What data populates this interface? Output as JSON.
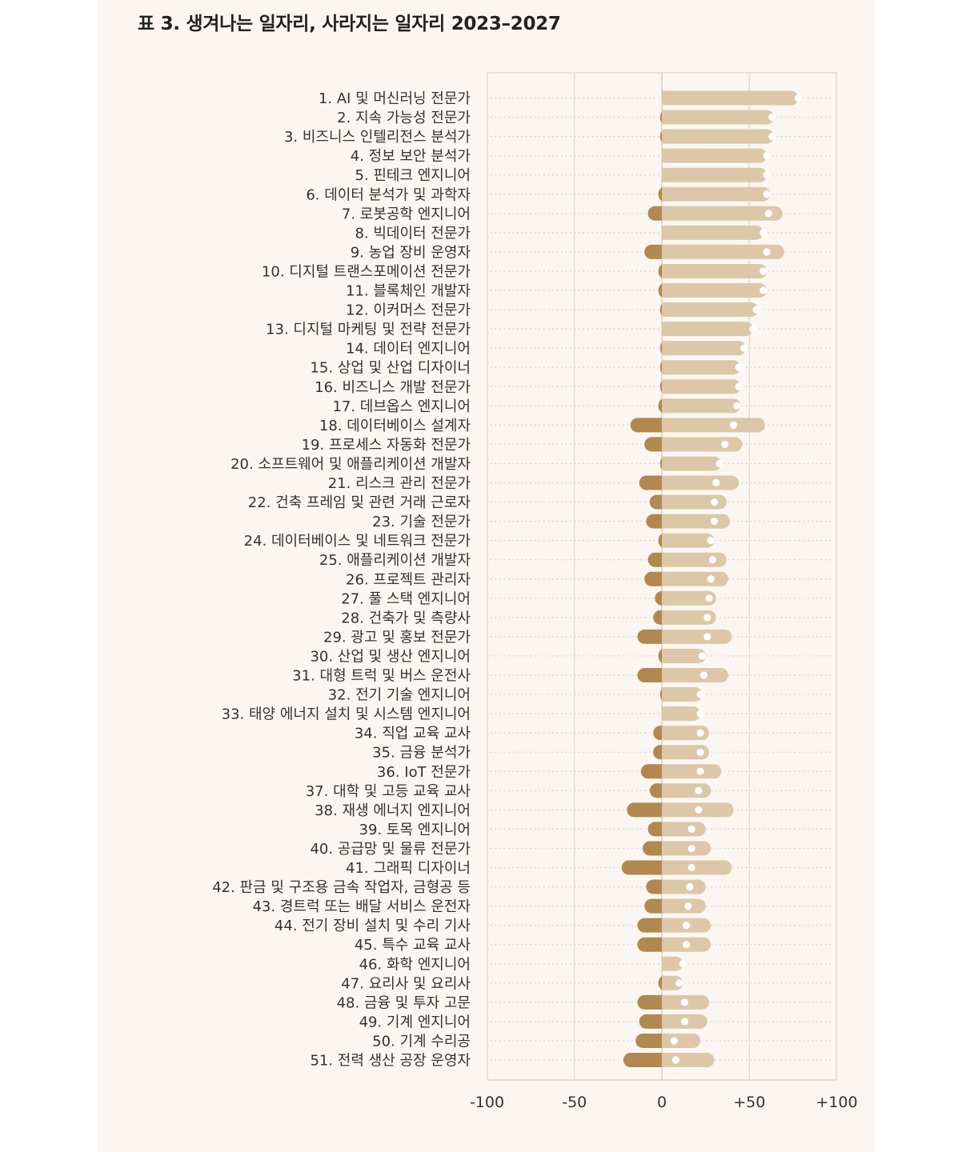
{
  "chart_data": {
    "type": "bar",
    "title": "표 3. 생겨나는 일자리, 사라지는 일자리 2023–2027",
    "xlabel": "",
    "ylabel": "",
    "xlim": [
      -100,
      100
    ],
    "x_ticks": [
      -100,
      -50,
      0,
      50,
      100
    ],
    "x_tick_labels": [
      "-100",
      "-50",
      "0",
      "+50",
      "+100"
    ],
    "colors": {
      "decline": "#b08850",
      "growth": "#dcc7a9",
      "net_marker": "#ffffff",
      "grid": "#e6d9c8"
    },
    "series": [
      {
        "name": "decline",
        "values": [
          0,
          -1,
          -1,
          0,
          0,
          -2,
          -8,
          0,
          -10,
          -2,
          -2,
          -1,
          0,
          -1,
          -1,
          -1,
          -2,
          -18,
          -10,
          -1,
          -13,
          -7,
          -9,
          -2,
          -8,
          -10,
          -4,
          -5,
          -14,
          -2,
          -14,
          -1,
          0,
          -5,
          -5,
          -12,
          -7,
          -20,
          -8,
          -11,
          -23,
          -9,
          -10,
          -14,
          -14,
          0,
          -2,
          -14,
          -13,
          -15,
          -22
        ]
      },
      {
        "name": "growth",
        "values": [
          78,
          64,
          64,
          60,
          60,
          62,
          69,
          58,
          70,
          60,
          60,
          55,
          52,
          48,
          45,
          45,
          45,
          59,
          46,
          34,
          44,
          37,
          39,
          30,
          37,
          38,
          31,
          31,
          40,
          25,
          38,
          23,
          22,
          27,
          27,
          34,
          28,
          41,
          25,
          28,
          40,
          25,
          25,
          28,
          28,
          12,
          12,
          27,
          26,
          22,
          30
        ]
      },
      {
        "name": "net",
        "values": [
          78,
          63,
          63,
          60,
          60,
          60,
          61,
          58,
          60,
          58,
          58,
          54,
          52,
          47,
          44,
          44,
          43,
          41,
          36,
          33,
          31,
          30,
          30,
          28,
          29,
          28,
          27,
          26,
          26,
          23,
          24,
          22,
          22,
          22,
          22,
          22,
          21,
          21,
          17,
          17,
          17,
          16,
          15,
          14,
          14,
          12,
          10,
          13,
          13,
          7,
          8
        ]
      }
    ],
    "categories": [
      "1. AI 및 머신러닝 전문가",
      "2. 지속 가능성 전문가",
      "3. 비즈니스 인텔리전스 분석가",
      "4. 정보 보안 분석가",
      "5. 핀테크 엔지니어",
      "6. 데이터 분석가 및 과학자",
      "7. 로봇공학 엔지니어",
      "8. 빅데이터 전문가",
      "9. 농업 장비 운영자",
      "10. 디지털 트랜스포메이션 전문가",
      "11. 블록체인 개발자",
      "12. 이커머스 전문가",
      "13. 디지털 마케팅 및 전략 전문가",
      "14. 데이터 엔지니어",
      "15. 상업 및 산업 디자이너",
      "16. 비즈니스 개발 전문가",
      "17. 데브옵스 엔지니어",
      "18. 데이터베이스 설계자",
      "19. 프로세스 자동화 전문가",
      "20. 소프트웨어 및 애플리케이션 개발자",
      "21. 리스크 관리 전문가",
      "22. 건축 프레임 및 관련 거래 근로자",
      "23. 기술 전문가",
      "24. 데이터베이스 및 네트워크 전문가",
      "25. 애플리케이션 개발자",
      "26. 프로젝트 관리자",
      "27. 풀 스택 엔지니어",
      "28. 건축가 및 측량사",
      "29. 광고 및 홍보 전문가",
      "30. 산업 및 생산 엔지니어",
      "31. 대형 트럭 및 버스 운전사",
      "32. 전기 기술 엔지니어",
      "33. 태양 에너지 설치 및 시스템 엔지니어",
      "34. 직업 교육 교사",
      "35. 금융 분석가",
      "36. IoT 전문가",
      "37. 대학 및 고등 교육 교사",
      "38. 재생 에너지 엔지니어",
      "39. 토목 엔지니어",
      "40. 공급망 및 물류 전문가",
      "41. 그래픽 디자이너",
      "42. 판금 및 구조용 금속 작업자, 금형공 등",
      "43. 경트럭 또는 배달 서비스 운전자",
      "44. 전기 장비 설치 및 수리 기사",
      "45. 특수 교육 교사",
      "46. 화학 엔지니어",
      "47. 요리사 및 요리사",
      "48. 금융 및 투자 고문",
      "49. 기계 엔지니어",
      "50. 기계 수리공",
      "51. 전력 생산 공장 운영자"
    ],
    "legend": "none",
    "grid": true
  }
}
